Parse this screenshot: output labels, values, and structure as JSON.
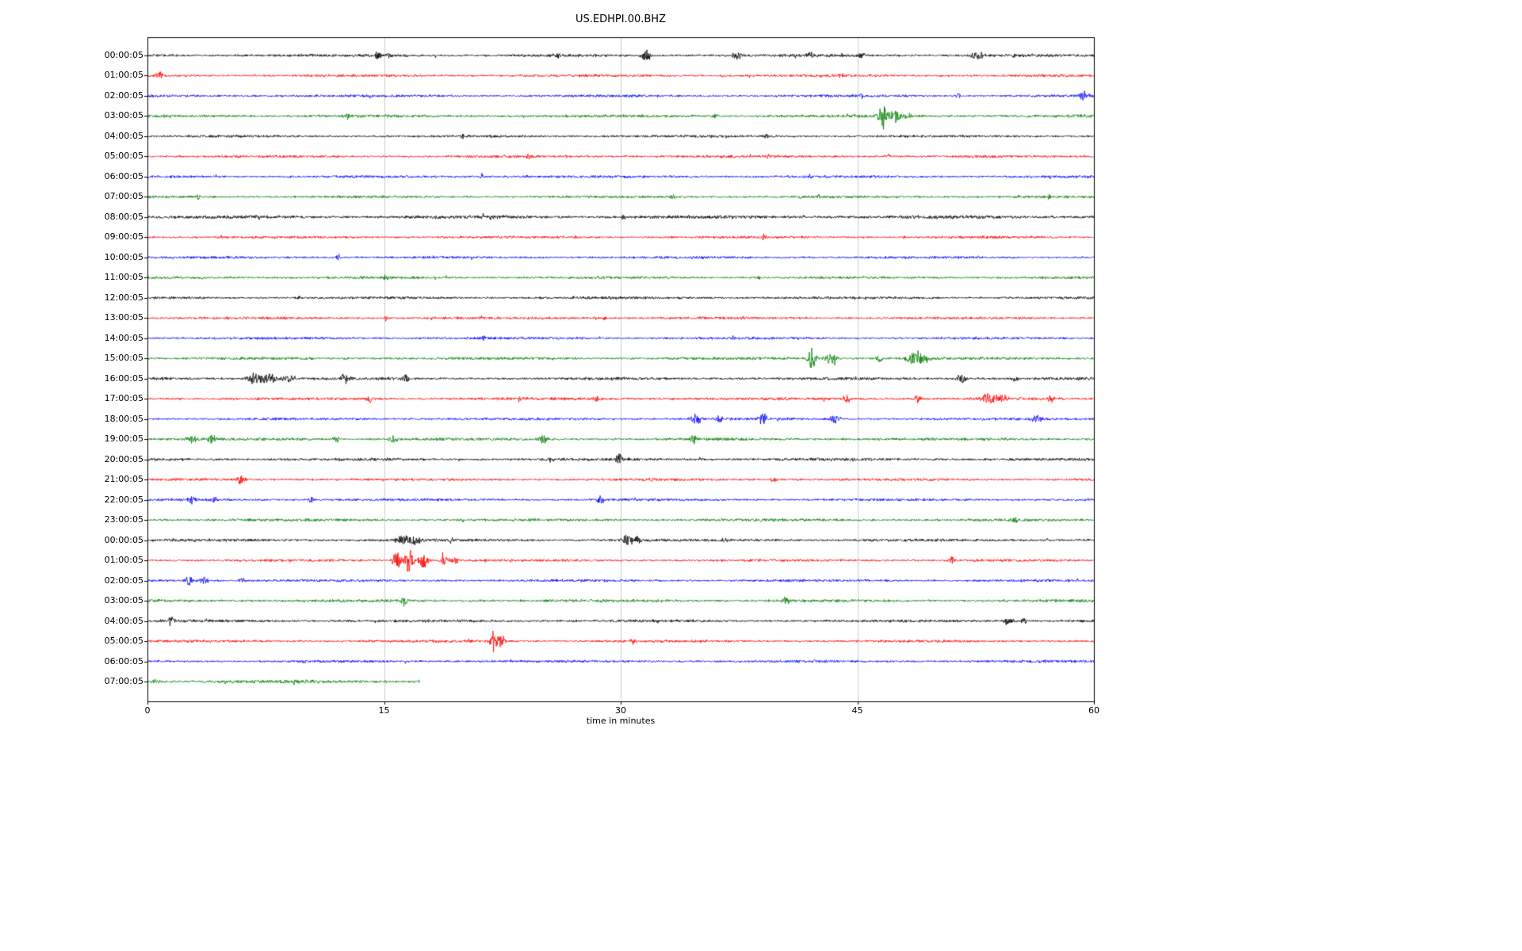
{
  "chart_data": {
    "type": "line",
    "subtype": "seismogram-dayplot",
    "title": "US.EDHPI.00.BHZ",
    "xlabel": "time in minutes",
    "xlim": [
      0,
      60
    ],
    "xticks": [
      0,
      15,
      30,
      45,
      60
    ],
    "grid_x": [
      15,
      30,
      45
    ],
    "grid_on": true,
    "grid_color": "#cccccc",
    "trace_color_cycle": [
      "#000000",
      "#ff0000",
      "#0000ff",
      "#008000"
    ],
    "rows": [
      {
        "label": "00:00:05",
        "color": "#000000",
        "gain": 1.1,
        "end": 60,
        "events": [
          [
            14.6,
            2.2,
            0.2
          ],
          [
            15.3,
            1.5,
            0.15
          ],
          [
            26,
            1.2,
            0.2
          ],
          [
            31.6,
            3.5,
            0.3
          ],
          [
            37.4,
            2.2,
            0.3
          ],
          [
            42,
            1.8,
            0.25
          ],
          [
            45.3,
            1.3,
            0.2
          ],
          [
            52.6,
            2.8,
            0.35
          ],
          [
            55,
            1.2,
            0.2
          ]
        ]
      },
      {
        "label": "01:00:05",
        "color": "#ff0000",
        "gain": 1,
        "end": 60,
        "events": [
          [
            0.8,
            2.5,
            0.2
          ],
          [
            36.5,
            1.2,
            0.2
          ],
          [
            44,
            1,
            0.2
          ]
        ]
      },
      {
        "label": "02:00:05",
        "color": "#0000ff",
        "gain": 1,
        "end": 60,
        "events": [
          [
            45.2,
            2.5,
            0.15
          ],
          [
            51.4,
            1.8,
            0.15
          ],
          [
            59.3,
            3.5,
            0.2
          ]
        ]
      },
      {
        "label": "03:00:05",
        "color": "#008000",
        "gain": 1.1,
        "end": 60,
        "events": [
          [
            12.7,
            1.8,
            0.15
          ],
          [
            36,
            2,
            0.15
          ],
          [
            46.6,
            7,
            0.3
          ],
          [
            47.4,
            3.5,
            0.3
          ],
          [
            48.2,
            1.5,
            0.3
          ]
        ]
      },
      {
        "label": "04:00:05",
        "color": "#000000",
        "gain": 1,
        "end": 60,
        "events": [
          [
            20,
            0.8,
            0.2
          ],
          [
            39.2,
            1.4,
            0.15
          ]
        ]
      },
      {
        "label": "05:00:05",
        "color": "#ff0000",
        "gain": 1,
        "end": 60,
        "events": [
          [
            24.2,
            1.3,
            0.15
          ],
          [
            39.3,
            1.4,
            0.15
          ],
          [
            47,
            1,
            0.15
          ]
        ]
      },
      {
        "label": "06:00:05",
        "color": "#0000ff",
        "gain": 1,
        "end": 60,
        "events": [
          [
            21.2,
            1.5,
            0.12
          ],
          [
            24,
            1,
            0.12
          ],
          [
            42,
            1,
            0.12
          ]
        ]
      },
      {
        "label": "07:00:05",
        "color": "#008000",
        "gain": 1,
        "end": 60,
        "events": [
          [
            3.2,
            1.4,
            0.15
          ],
          [
            33.3,
            1.6,
            0.12
          ],
          [
            42.5,
            1.2,
            0.12
          ],
          [
            57.2,
            1.4,
            0.12
          ]
        ]
      },
      {
        "label": "08:00:05",
        "color": "#000000",
        "gain": 1.35,
        "end": 60,
        "events": [
          [
            30.2,
            1,
            0.2
          ]
        ]
      },
      {
        "label": "09:00:05",
        "color": "#ff0000",
        "gain": 1,
        "end": 60,
        "events": [
          [
            39.1,
            1.5,
            0.12
          ],
          [
            48,
            0.9,
            0.12
          ]
        ]
      },
      {
        "label": "10:00:05",
        "color": "#0000ff",
        "gain": 1,
        "end": 60,
        "events": [
          [
            12.1,
            1.8,
            0.12
          ],
          [
            20.5,
            1,
            0.12
          ]
        ]
      },
      {
        "label": "11:00:05",
        "color": "#008000",
        "gain": 1,
        "end": 60,
        "events": [
          [
            15.1,
            1.2,
            0.12
          ],
          [
            38.8,
            1.1,
            0.12
          ]
        ]
      },
      {
        "label": "12:00:05",
        "color": "#000000",
        "gain": 1,
        "end": 60,
        "events": [
          [
            9.6,
            1.3,
            0.15
          ],
          [
            27,
            1,
            0.15
          ]
        ]
      },
      {
        "label": "13:00:05",
        "color": "#ff0000",
        "gain": 1,
        "end": 60,
        "events": [
          [
            15.1,
            1.4,
            0.12
          ],
          [
            29,
            0.9,
            0.12
          ]
        ]
      },
      {
        "label": "14:00:05",
        "color": "#0000ff",
        "gain": 1,
        "end": 60,
        "events": [
          [
            10,
            0.9,
            0.12
          ],
          [
            21.3,
            1.4,
            0.12
          ]
        ]
      },
      {
        "label": "15:00:05",
        "color": "#008000",
        "gain": 1.1,
        "end": 60,
        "events": [
          [
            42.1,
            6.5,
            0.25
          ],
          [
            43.3,
            3,
            0.4
          ],
          [
            46.4,
            2,
            0.2
          ],
          [
            48.6,
            4,
            0.45
          ],
          [
            49.3,
            2,
            0.3
          ]
        ]
      },
      {
        "label": "16:00:05",
        "color": "#000000",
        "gain": 1.1,
        "end": 60,
        "events": [
          [
            6.8,
            3,
            0.5
          ],
          [
            7.8,
            2.5,
            0.5
          ],
          [
            9,
            2,
            0.4
          ],
          [
            12.5,
            2.8,
            0.3
          ],
          [
            16.4,
            2.5,
            0.25
          ],
          [
            51.6,
            2.5,
            0.3
          ],
          [
            55,
            1.2,
            0.2
          ]
        ]
      },
      {
        "label": "17:00:05",
        "color": "#ff0000",
        "gain": 1.1,
        "end": 60,
        "events": [
          [
            14.1,
            2.2,
            0.2
          ],
          [
            23.6,
            1.8,
            0.2
          ],
          [
            28.5,
            1.2,
            0.2
          ],
          [
            44.3,
            2.2,
            0.25
          ],
          [
            48.8,
            2.2,
            0.25
          ],
          [
            53.3,
            2.8,
            0.5
          ],
          [
            54.2,
            2.2,
            0.4
          ],
          [
            57.3,
            1.8,
            0.25
          ]
        ]
      },
      {
        "label": "18:00:05",
        "color": "#0000ff",
        "gain": 1,
        "end": 60,
        "events": [
          [
            34.8,
            2.8,
            0.35
          ],
          [
            36.2,
            1.8,
            0.25
          ],
          [
            39,
            3.2,
            0.25
          ],
          [
            43.6,
            2.6,
            0.3
          ],
          [
            56.4,
            2.2,
            0.25
          ]
        ]
      },
      {
        "label": "19:00:05",
        "color": "#008000",
        "gain": 1.1,
        "end": 60,
        "events": [
          [
            2.9,
            3,
            0.25
          ],
          [
            4.1,
            2.2,
            0.25
          ],
          [
            12,
            1.8,
            0.2
          ],
          [
            15.6,
            2.2,
            0.3
          ],
          [
            25.1,
            2.6,
            0.25
          ],
          [
            34.6,
            2.4,
            0.2
          ]
        ]
      },
      {
        "label": "20:00:05",
        "color": "#000000",
        "gain": 1.1,
        "end": 60,
        "events": [
          [
            25.6,
            1.4,
            0.2
          ],
          [
            29.9,
            3.5,
            0.2
          ],
          [
            35,
            1,
            0.2
          ]
        ]
      },
      {
        "label": "21:00:05",
        "color": "#ff0000",
        "gain": 1,
        "end": 60,
        "events": [
          [
            5.9,
            2.6,
            0.3
          ],
          [
            32,
            1.1,
            0.2
          ],
          [
            39.7,
            1.2,
            0.2
          ]
        ]
      },
      {
        "label": "22:00:05",
        "color": "#0000ff",
        "gain": 1,
        "end": 60,
        "events": [
          [
            2.8,
            2.2,
            0.25
          ],
          [
            4.3,
            1.8,
            0.2
          ],
          [
            10.4,
            2.2,
            0.2
          ],
          [
            28.7,
            2.2,
            0.25
          ]
        ]
      },
      {
        "label": "23:00:05",
        "color": "#008000",
        "gain": 1.1,
        "end": 60,
        "events": [
          [
            20,
            0.9,
            0.15
          ],
          [
            55,
            1.8,
            0.2
          ]
        ]
      },
      {
        "label": "00:00:05",
        "color": "#000000",
        "gain": 1.1,
        "end": 60,
        "events": [
          [
            16.2,
            2.2,
            0.5
          ],
          [
            17,
            1.8,
            0.4
          ],
          [
            19.2,
            1.6,
            0.2
          ],
          [
            30.4,
            3,
            0.35
          ],
          [
            31,
            2,
            0.25
          ],
          [
            36.6,
            1.4,
            0.2
          ]
        ]
      },
      {
        "label": "01:00:05",
        "color": "#ff0000",
        "gain": 1,
        "end": 60,
        "events": [
          [
            15.8,
            6,
            0.25
          ],
          [
            16.6,
            7,
            0.3
          ],
          [
            17.5,
            4.5,
            0.3
          ],
          [
            18.8,
            2.5,
            0.3
          ],
          [
            19.5,
            1.5,
            0.3
          ],
          [
            51,
            1.8,
            0.2
          ]
        ]
      },
      {
        "label": "02:00:05",
        "color": "#0000ff",
        "gain": 1,
        "end": 60,
        "events": [
          [
            2.6,
            2.4,
            0.3
          ],
          [
            3.6,
            2,
            0.25
          ],
          [
            6,
            1.4,
            0.2
          ]
        ]
      },
      {
        "label": "03:00:05",
        "color": "#008000",
        "gain": 1.1,
        "end": 60,
        "events": [
          [
            16.3,
            3,
            0.2
          ],
          [
            40.5,
            2,
            0.25
          ]
        ]
      },
      {
        "label": "04:00:05",
        "color": "#000000",
        "gain": 1.1,
        "end": 60,
        "events": [
          [
            1.5,
            3,
            0.2
          ],
          [
            54.6,
            2.6,
            0.3
          ],
          [
            55.6,
            1.8,
            0.25
          ]
        ]
      },
      {
        "label": "05:00:05",
        "color": "#ff0000",
        "gain": 1,
        "end": 60,
        "events": [
          [
            20.3,
            2.5,
            0.15
          ],
          [
            21.9,
            6,
            0.2
          ],
          [
            22.4,
            3.5,
            0.25
          ],
          [
            30.8,
            1.8,
            0.2
          ]
        ]
      },
      {
        "label": "06:00:05",
        "color": "#0000ff",
        "gain": 1,
        "end": 60,
        "events": [
          [
            10,
            0.8,
            0.15
          ],
          [
            57,
            0.8,
            0.15
          ]
        ]
      },
      {
        "label": "07:00:05",
        "color": "#008000",
        "gain": 1.3,
        "end": 17.3,
        "events": [
          [
            0.5,
            1,
            0.3
          ]
        ]
      }
    ]
  }
}
